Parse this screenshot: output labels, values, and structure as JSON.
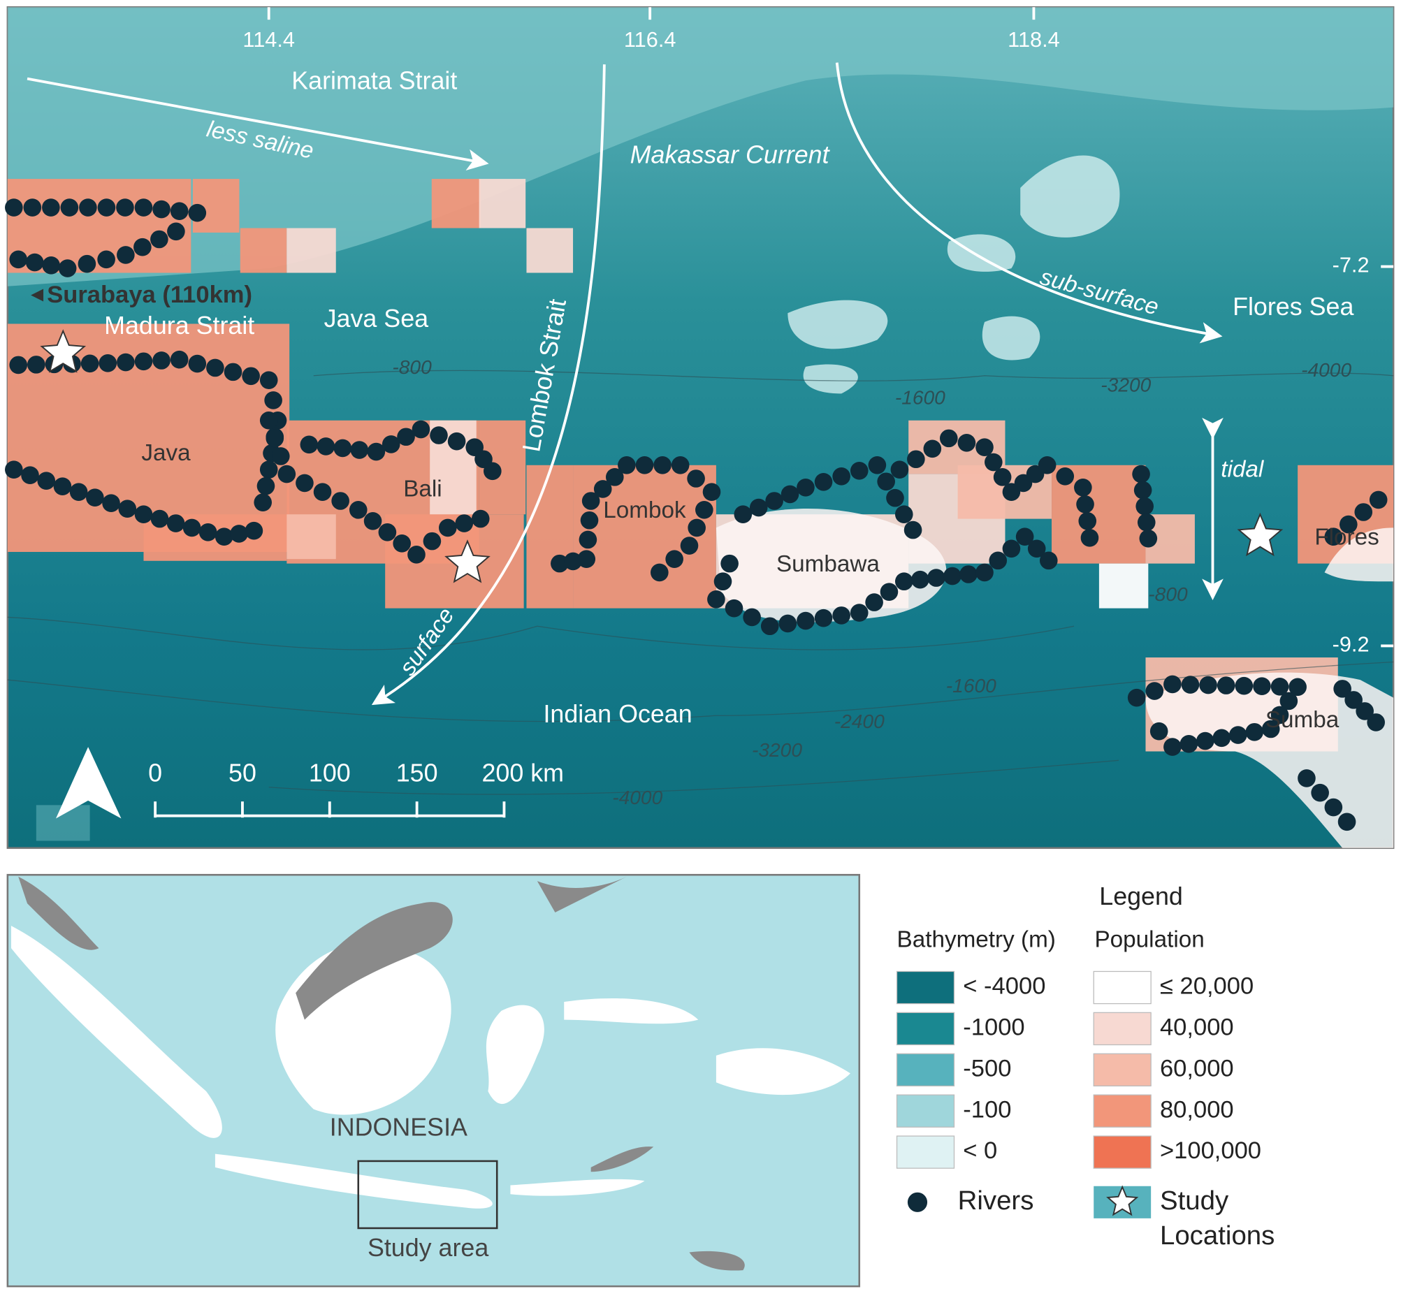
{
  "map": {
    "longitude_labels": [
      "114.4",
      "116.4",
      "118.4"
    ],
    "latitude_labels": [
      "-7.2",
      "-9.2"
    ],
    "places": {
      "karimata": "Karimata Strait",
      "java_sea": "Java Sea",
      "flores_sea": "Flores Sea",
      "madura": "Madura Strait",
      "indian_ocean": "Indian Ocean",
      "surabaya": "Surabaya (110km)",
      "java": "Java",
      "bali": "Bali",
      "lombok": "Lombok",
      "sumbawa": "Sumbawa",
      "flores": "Flores",
      "sumba": "Sumba"
    },
    "currents": {
      "less_saline": "less saline",
      "makassar": "Makassar Current",
      "lombok_strait": "Lombok Strait",
      "sub_surface": "sub-surface",
      "surface": "surface",
      "tidal": "tidal"
    },
    "contours": [
      "-800",
      "-1600",
      "-3200",
      "-4000",
      "-800",
      "-1600",
      "-2400",
      "-3200",
      "-4000"
    ],
    "scale_bar": {
      "ticks": [
        0,
        50,
        100,
        150,
        {
          "value": 200,
          "label": "200 km"
        }
      ]
    }
  },
  "inset": {
    "country": "INDONESIA",
    "box_label": "Study area"
  },
  "legend": {
    "title": "Legend",
    "bathymetry": {
      "title": "Bathymetry (m)",
      "items": [
        {
          "label": "< -4000",
          "color": "#0e6f7c"
        },
        {
          "label": "-1000",
          "color": "#1a8891"
        },
        {
          "label": "-500",
          "color": "#57b2bd"
        },
        {
          "label": "-100",
          "color": "#9fd6db"
        },
        {
          "label": "< 0",
          "color": "#dff2f3"
        }
      ]
    },
    "population": {
      "title": "Population",
      "items": [
        {
          "label": "≤ 20,000",
          "color": "#ffffff"
        },
        {
          "label": "40,000",
          "color": "#f7d9d2"
        },
        {
          "label": "60,000",
          "color": "#f5bba9"
        },
        {
          "label": "80,000",
          "color": "#f2967a"
        },
        {
          "label": ">100,000",
          "color": "#ef7353"
        }
      ]
    },
    "rivers": {
      "label": "Rivers",
      "color": "#0f2b3a"
    },
    "study_locations": {
      "label_lines": [
        "Study",
        "Locations"
      ]
    }
  }
}
